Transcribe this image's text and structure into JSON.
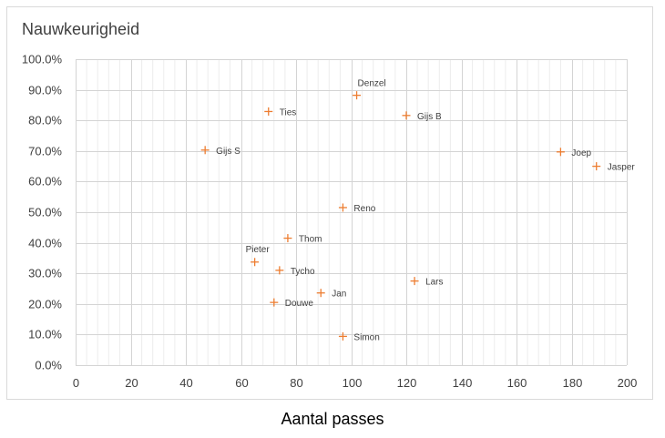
{
  "chart_data": {
    "type": "scatter",
    "title": "Nauwkeurigheid",
    "xlabel": "Aantal passes",
    "ylabel": "",
    "xlim": [
      0,
      200
    ],
    "ylim": [
      0,
      1
    ],
    "x_ticks": [
      "0",
      "20",
      "40",
      "60",
      "80",
      "100",
      "120",
      "140",
      "160",
      "180",
      "200"
    ],
    "y_ticks": [
      "0.0%",
      "10.0%",
      "20.0%",
      "30.0%",
      "40.0%",
      "50.0%",
      "60.0%",
      "70.0%",
      "80.0%",
      "90.0%",
      "100.0%"
    ],
    "grid": true,
    "marker": "plus",
    "marker_color": "#ED7D31",
    "points": [
      {
        "label": "Denzel",
        "x": 102,
        "y": 0.882
      },
      {
        "label": "Ties",
        "x": 70,
        "y": 0.829
      },
      {
        "label": "Gijs B",
        "x": 120,
        "y": 0.816
      },
      {
        "label": "Gijs S",
        "x": 47,
        "y": 0.703
      },
      {
        "label": "Joep",
        "x": 176,
        "y": 0.697
      },
      {
        "label": "Jasper",
        "x": 189,
        "y": 0.65
      },
      {
        "label": "Reno",
        "x": 97,
        "y": 0.515
      },
      {
        "label": "Thom",
        "x": 77,
        "y": 0.415
      },
      {
        "label": "Pieter",
        "x": 65,
        "y": 0.337
      },
      {
        "label": "Tycho",
        "x": 74,
        "y": 0.31
      },
      {
        "label": "Lars",
        "x": 123,
        "y": 0.275
      },
      {
        "label": "Jan",
        "x": 89,
        "y": 0.236
      },
      {
        "label": "Douwe",
        "x": 72,
        "y": 0.205
      },
      {
        "label": "Simon",
        "x": 97,
        "y": 0.094
      }
    ]
  }
}
